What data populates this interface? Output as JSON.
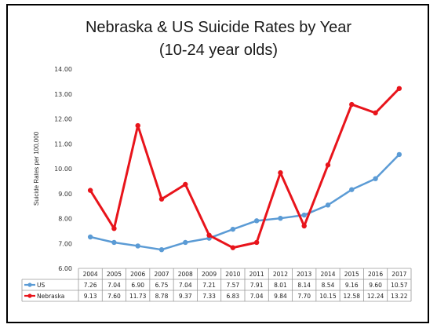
{
  "chart_data": {
    "type": "line",
    "title": "Nebraska & US Suicide Rates by Year",
    "subtitle": "(10-24 year olds)",
    "ylabel": "Suicide Rates per 100,000",
    "xlabel": "",
    "ylim": [
      6.0,
      14.0
    ],
    "yticks": [
      "14.00",
      "13.00",
      "12.00",
      "11.00",
      "10.00",
      "9.00",
      "8.00",
      "7.00",
      "6.00"
    ],
    "x": [
      "2004",
      "2005",
      "2006",
      "2007",
      "2008",
      "2009",
      "2010",
      "2011",
      "2012",
      "2013",
      "2014",
      "2015",
      "2016",
      "2017"
    ],
    "series": [
      {
        "name": "US",
        "color": "#5b9bd5",
        "values": [
          7.26,
          7.04,
          6.9,
          6.75,
          7.04,
          7.21,
          7.57,
          7.91,
          8.01,
          8.14,
          8.54,
          9.16,
          9.6,
          10.57
        ],
        "labels": [
          "7.26",
          "7.04",
          "6.90",
          "6.75",
          "7.04",
          "7.21",
          "7.57",
          "7.91",
          "8.01",
          "8.14",
          "8.54",
          "9.16",
          "9.60",
          "10.57"
        ]
      },
      {
        "name": "Nebraska",
        "color": "#e8141b",
        "values": [
          9.13,
          7.6,
          11.73,
          8.78,
          9.37,
          7.33,
          6.83,
          7.04,
          9.84,
          7.7,
          10.15,
          12.58,
          12.24,
          13.22
        ],
        "labels": [
          "9.13",
          "7.60",
          "11.73",
          "8.78",
          "9.37",
          "7.33",
          "6.83",
          "7.04",
          "9.84",
          "7.70",
          "10.15",
          "12.58",
          "12.24",
          "13.22"
        ]
      }
    ],
    "grid": false,
    "legend": "data-table"
  }
}
